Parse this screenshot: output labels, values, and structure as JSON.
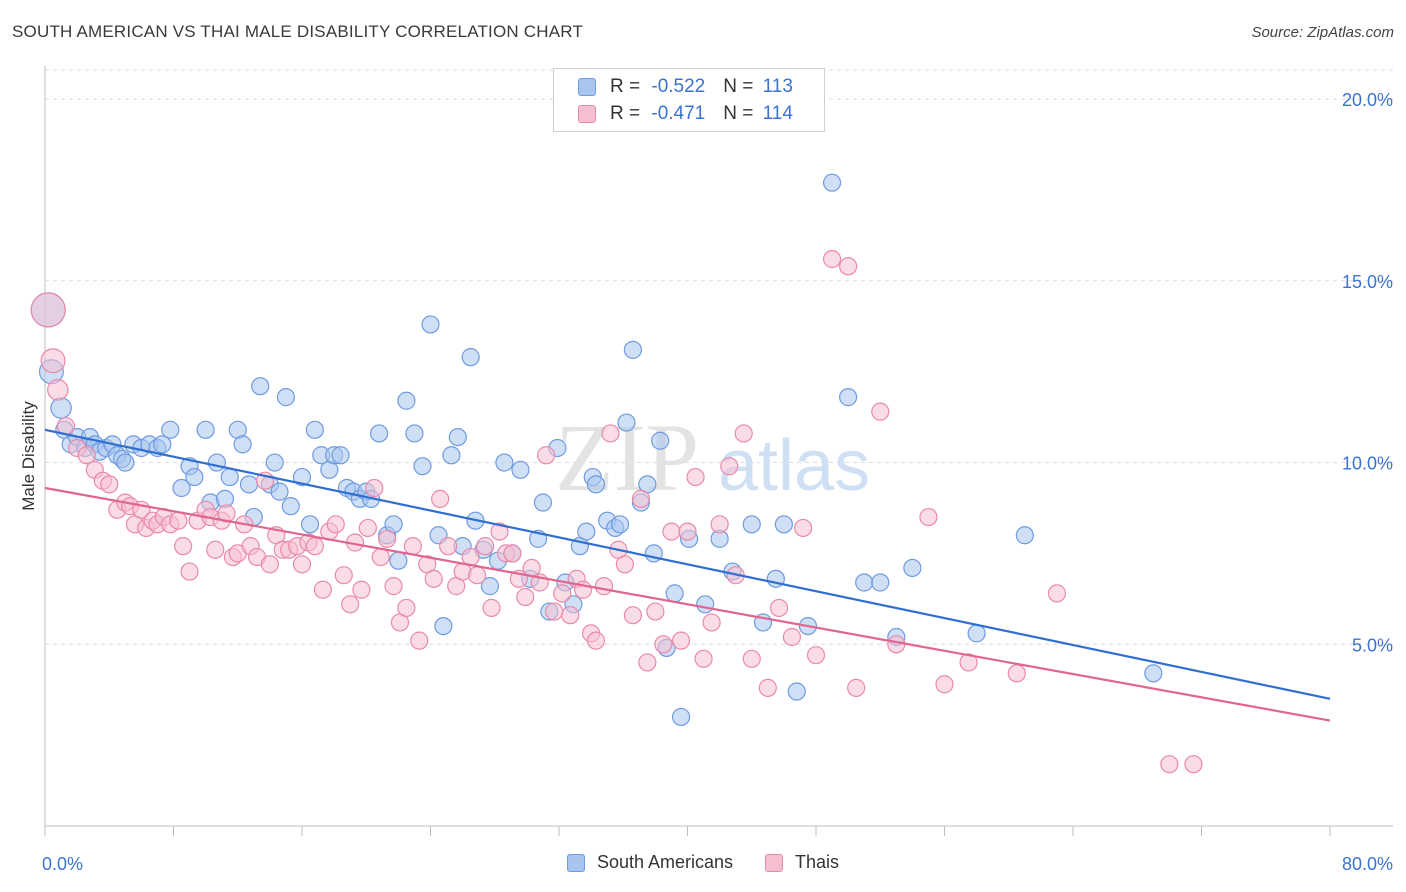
{
  "title": "SOUTH AMERICAN VS THAI MALE DISABILITY CORRELATION CHART",
  "source": "Source: ZipAtlas.com",
  "watermark": {
    "zip": "ZIP",
    "atlas": "atlas"
  },
  "legend": {
    "rows": [
      {
        "r_label": "R = ",
        "r_value": "-0.522",
        "n_label": "N = ",
        "n_value": "113",
        "color": "#a8c4ef",
        "border": "#6f9be0"
      },
      {
        "r_label": "R = ",
        "r_value": "-0.471",
        "n_label": "N = ",
        "n_value": "114",
        "color": "#f6bfd1",
        "border": "#e98aaa"
      }
    ]
  },
  "bottom_legend": [
    {
      "label": "South Americans",
      "color": "#a8c4ef",
      "border": "#6f9be0"
    },
    {
      "label": "Thais",
      "color": "#f6bfd1",
      "border": "#e98aaa"
    }
  ],
  "chart_data": {
    "type": "scatter",
    "title": "SOUTH AMERICAN VS THAI MALE DISABILITY CORRELATION CHART",
    "xlabel": "",
    "ylabel": "Male Disability",
    "xlim": [
      0,
      80
    ],
    "ylim": [
      0,
      20.8
    ],
    "x_tick_labels": [
      {
        "value": 0,
        "label": "0.0%"
      },
      {
        "value": 80,
        "label": "80.0%"
      }
    ],
    "y_tick_labels": [
      {
        "value": 5,
        "label": "5.0%"
      },
      {
        "value": 10,
        "label": "10.0%"
      },
      {
        "value": 15,
        "label": "15.0%"
      },
      {
        "value": 20,
        "label": "20.0%"
      }
    ],
    "grid": "horizontal dashed",
    "legend_position": "top-center",
    "series": [
      {
        "name": "South Americans",
        "color": "#6f9be0",
        "fill": "#a8c4ef",
        "line_color": "#2f6fd0",
        "trend": {
          "x": [
            0,
            80
          ],
          "y": [
            10.9,
            3.5
          ]
        },
        "points": [
          [
            0.2,
            14.2,
            2
          ],
          [
            0.4,
            12.5,
            1.4
          ],
          [
            1,
            11.5,
            1.2
          ],
          [
            1.2,
            10.9,
            1
          ],
          [
            1.6,
            10.5,
            1
          ],
          [
            2,
            10.7,
            1
          ],
          [
            2.5,
            10.4,
            1
          ],
          [
            2.8,
            10.7,
            1
          ],
          [
            3.1,
            10.5,
            1
          ],
          [
            3.4,
            10.3,
            1
          ],
          [
            3.8,
            10.4,
            1
          ],
          [
            4.2,
            10.5,
            1
          ],
          [
            4.5,
            10.2,
            1
          ],
          [
            4.8,
            10.1,
            1
          ],
          [
            5,
            10,
            1
          ],
          [
            5.5,
            10.5,
            1
          ],
          [
            6,
            10.4,
            1
          ],
          [
            6.5,
            10.5,
            1
          ],
          [
            7,
            10.4,
            1
          ],
          [
            7.3,
            10.5,
            1
          ],
          [
            7.8,
            10.9,
            1
          ],
          [
            8.5,
            9.3,
            1
          ],
          [
            9,
            9.9,
            1
          ],
          [
            9.3,
            9.6,
            1
          ],
          [
            10,
            10.9,
            1
          ],
          [
            10.3,
            8.9,
            1
          ],
          [
            10.7,
            10,
            1
          ],
          [
            11.2,
            9,
            1
          ],
          [
            11.5,
            9.6,
            1
          ],
          [
            12,
            10.9,
            1
          ],
          [
            12.3,
            10.5,
            1
          ],
          [
            12.7,
            9.4,
            1
          ],
          [
            13,
            8.5,
            1
          ],
          [
            13.4,
            12.1,
            1
          ],
          [
            14,
            9.4,
            1
          ],
          [
            14.3,
            10,
            1
          ],
          [
            14.6,
            9.2,
            1
          ],
          [
            15,
            11.8,
            1
          ],
          [
            15.3,
            8.8,
            1
          ],
          [
            16,
            9.6,
            1
          ],
          [
            16.5,
            8.3,
            1
          ],
          [
            16.8,
            10.9,
            1
          ],
          [
            17.2,
            10.2,
            1
          ],
          [
            17.7,
            9.8,
            1
          ],
          [
            18,
            10.2,
            1
          ],
          [
            18.4,
            10.2,
            1
          ],
          [
            18.8,
            9.3,
            1
          ],
          [
            19.2,
            9.2,
            1
          ],
          [
            19.6,
            9,
            1
          ],
          [
            20,
            9.2,
            1
          ],
          [
            20.3,
            9,
            1
          ],
          [
            20.8,
            10.8,
            1
          ],
          [
            21.3,
            8,
            1
          ],
          [
            21.7,
            8.3,
            1
          ],
          [
            22,
            7.3,
            1
          ],
          [
            22.5,
            11.7,
            1
          ],
          [
            23,
            10.8,
            1
          ],
          [
            23.5,
            9.9,
            1
          ],
          [
            24,
            13.8,
            1
          ],
          [
            24.5,
            8,
            1
          ],
          [
            24.8,
            5.5,
            1
          ],
          [
            25.3,
            10.2,
            1
          ],
          [
            25.7,
            10.7,
            1
          ],
          [
            26,
            7.7,
            1
          ],
          [
            26.5,
            12.9,
            1
          ],
          [
            26.8,
            8.4,
            1
          ],
          [
            27.3,
            7.6,
            1
          ],
          [
            27.7,
            6.6,
            1
          ],
          [
            28.2,
            7.3,
            1
          ],
          [
            28.6,
            10,
            1
          ],
          [
            29.1,
            7.5,
            1
          ],
          [
            29.6,
            9.8,
            1
          ],
          [
            30.2,
            6.8,
            1
          ],
          [
            30.7,
            7.9,
            1
          ],
          [
            31,
            8.9,
            1
          ],
          [
            31.4,
            5.9,
            1
          ],
          [
            31.9,
            10.4,
            1
          ],
          [
            32.4,
            6.7,
            1
          ],
          [
            32.9,
            6.1,
            1
          ],
          [
            33.3,
            7.7,
            1
          ],
          [
            33.7,
            8.1,
            1
          ],
          [
            34.1,
            9.6,
            1
          ],
          [
            34.3,
            9.4,
            1
          ],
          [
            35,
            8.4,
            1
          ],
          [
            35.5,
            8.2,
            1
          ],
          [
            35.8,
            8.3,
            1
          ],
          [
            36.2,
            11.1,
            1
          ],
          [
            36.6,
            13.1,
            1
          ],
          [
            37.1,
            8.9,
            1
          ],
          [
            37.5,
            9.4,
            1
          ],
          [
            37.9,
            7.5,
            1
          ],
          [
            38.3,
            10.6,
            1
          ],
          [
            38.7,
            4.9,
            1
          ],
          [
            39.2,
            6.4,
            1
          ],
          [
            39.6,
            3,
            1
          ],
          [
            40.1,
            7.9,
            1
          ],
          [
            41.1,
            6.1,
            1
          ],
          [
            42,
            7.9,
            1
          ],
          [
            42.8,
            7,
            1
          ],
          [
            44,
            8.3,
            1
          ],
          [
            44.7,
            5.6,
            1
          ],
          [
            45.5,
            6.8,
            1
          ],
          [
            46,
            8.3,
            1
          ],
          [
            46.8,
            3.7,
            1
          ],
          [
            47.5,
            5.5,
            1
          ],
          [
            49,
            17.7,
            1
          ],
          [
            50,
            11.8,
            1
          ],
          [
            51,
            6.7,
            1
          ],
          [
            52,
            6.7,
            1
          ],
          [
            53,
            5.2,
            1
          ],
          [
            54,
            7.1,
            1
          ],
          [
            58,
            5.3,
            1
          ],
          [
            61,
            8,
            1
          ],
          [
            69,
            4.2,
            1
          ]
        ]
      },
      {
        "name": "Thais",
        "color": "#e98aaa",
        "fill": "#f6bfd1",
        "line_color": "#e0668f",
        "trend": {
          "x": [
            0,
            80
          ],
          "y": [
            9.3,
            2.9
          ]
        },
        "points": [
          [
            0.2,
            14.2,
            2
          ],
          [
            0.5,
            12.8,
            1.4
          ],
          [
            0.8,
            12,
            1.2
          ],
          [
            1.3,
            11,
            1
          ],
          [
            2,
            10.4,
            1
          ],
          [
            2.6,
            10.2,
            1
          ],
          [
            3.1,
            9.8,
            1
          ],
          [
            3.6,
            9.5,
            1
          ],
          [
            4,
            9.4,
            1
          ],
          [
            4.5,
            8.7,
            1
          ],
          [
            5,
            8.9,
            1
          ],
          [
            5.3,
            8.8,
            1
          ],
          [
            5.6,
            8.3,
            1
          ],
          [
            6,
            8.7,
            1
          ],
          [
            6.3,
            8.2,
            1
          ],
          [
            6.7,
            8.4,
            1
          ],
          [
            7,
            8.3,
            1
          ],
          [
            7.4,
            8.5,
            1
          ],
          [
            7.8,
            8.3,
            1
          ],
          [
            8.3,
            8.4,
            1
          ],
          [
            8.6,
            7.7,
            1
          ],
          [
            9,
            7,
            1
          ],
          [
            9.5,
            8.4,
            1
          ],
          [
            10,
            8.7,
            1
          ],
          [
            10.3,
            8.5,
            1
          ],
          [
            10.6,
            7.6,
            1
          ],
          [
            11,
            8.4,
            1
          ],
          [
            11.3,
            8.6,
            1
          ],
          [
            11.7,
            7.4,
            1
          ],
          [
            12,
            7.5,
            1
          ],
          [
            12.4,
            8.3,
            1
          ],
          [
            12.8,
            7.7,
            1
          ],
          [
            13.2,
            7.4,
            1
          ],
          [
            13.7,
            9.5,
            1
          ],
          [
            14,
            7.2,
            1
          ],
          [
            14.4,
            8,
            1
          ],
          [
            14.8,
            7.6,
            1
          ],
          [
            15.2,
            7.6,
            1
          ],
          [
            15.7,
            7.7,
            1
          ],
          [
            16,
            7.2,
            1
          ],
          [
            16.4,
            7.8,
            1
          ],
          [
            16.8,
            7.7,
            1
          ],
          [
            17.3,
            6.5,
            1
          ],
          [
            17.7,
            8.1,
            1
          ],
          [
            18.1,
            8.3,
            1
          ],
          [
            18.6,
            6.9,
            1
          ],
          [
            19,
            6.1,
            1
          ],
          [
            19.3,
            7.8,
            1
          ],
          [
            19.7,
            6.5,
            1
          ],
          [
            20.1,
            8.2,
            1
          ],
          [
            20.5,
            9.3,
            1
          ],
          [
            20.9,
            7.4,
            1
          ],
          [
            21.3,
            7.9,
            1
          ],
          [
            21.7,
            6.6,
            1
          ],
          [
            22.1,
            5.6,
            1
          ],
          [
            22.5,
            6,
            1
          ],
          [
            22.9,
            7.7,
            1
          ],
          [
            23.3,
            5.1,
            1
          ],
          [
            23.8,
            7.2,
            1
          ],
          [
            24.2,
            6.8,
            1
          ],
          [
            24.6,
            9,
            1
          ],
          [
            25.1,
            7.7,
            1
          ],
          [
            25.6,
            6.6,
            1
          ],
          [
            26,
            7,
            1
          ],
          [
            26.5,
            7.4,
            1
          ],
          [
            26.9,
            6.9,
            1
          ],
          [
            27.4,
            7.7,
            1
          ],
          [
            27.8,
            6,
            1
          ],
          [
            28.3,
            8.1,
            1
          ],
          [
            28.7,
            7.5,
            1
          ],
          [
            29.1,
            7.5,
            1
          ],
          [
            29.5,
            6.8,
            1
          ],
          [
            29.9,
            6.3,
            1
          ],
          [
            30.3,
            7.1,
            1
          ],
          [
            30.8,
            6.7,
            1
          ],
          [
            31.2,
            10.2,
            1
          ],
          [
            31.7,
            5.9,
            1
          ],
          [
            32.2,
            6.4,
            1
          ],
          [
            32.7,
            5.8,
            1
          ],
          [
            33.1,
            6.8,
            1
          ],
          [
            33.5,
            6.5,
            1
          ],
          [
            34,
            5.3,
            1
          ],
          [
            34.3,
            5.1,
            1
          ],
          [
            34.8,
            6.6,
            1
          ],
          [
            35.2,
            10.8,
            1
          ],
          [
            35.7,
            7.6,
            1
          ],
          [
            36.1,
            7.2,
            1
          ],
          [
            36.6,
            5.8,
            1
          ],
          [
            37.1,
            9,
            1
          ],
          [
            37.5,
            4.5,
            1
          ],
          [
            38,
            5.9,
            1
          ],
          [
            38.5,
            5,
            1
          ],
          [
            39,
            8.1,
            1
          ],
          [
            39.6,
            5.1,
            1
          ],
          [
            40,
            8.1,
            1
          ],
          [
            40.5,
            9.6,
            1
          ],
          [
            41,
            4.6,
            1
          ],
          [
            41.5,
            5.6,
            1
          ],
          [
            42,
            8.3,
            1
          ],
          [
            42.6,
            9.9,
            1
          ],
          [
            43,
            6.9,
            1
          ],
          [
            43.5,
            10.8,
            1
          ],
          [
            44,
            4.6,
            1
          ],
          [
            45,
            3.8,
            1
          ],
          [
            45.7,
            6,
            1
          ],
          [
            46.5,
            5.2,
            1
          ],
          [
            47.2,
            8.2,
            1
          ],
          [
            48,
            4.7,
            1
          ],
          [
            49,
            15.6,
            1
          ],
          [
            50,
            15.4,
            1
          ],
          [
            50.5,
            3.8,
            1
          ],
          [
            52,
            11.4,
            1
          ],
          [
            53,
            5,
            1
          ],
          [
            55,
            8.5,
            1
          ],
          [
            56,
            3.9,
            1
          ],
          [
            57.5,
            4.5,
            1
          ],
          [
            60.5,
            4.2,
            1
          ],
          [
            63,
            6.4,
            1
          ],
          [
            70,
            1.7,
            1
          ],
          [
            71.5,
            1.7,
            1
          ]
        ]
      }
    ]
  }
}
